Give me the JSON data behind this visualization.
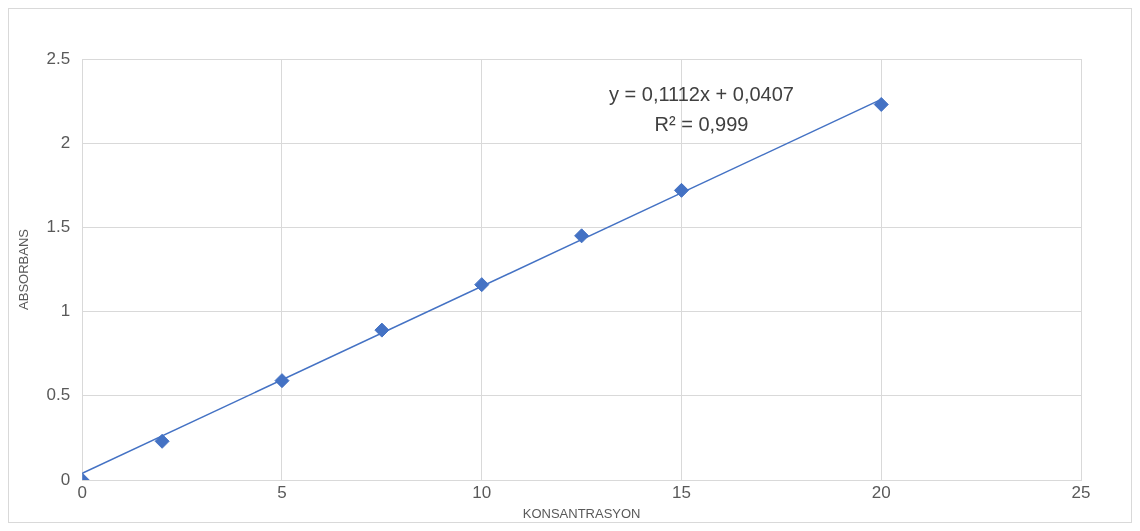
{
  "chart_data": {
    "type": "scatter",
    "xlabel": "KONSANTRASYON",
    "ylabel": "ABSORBANS",
    "x": [
      0,
      2,
      5,
      7.5,
      10,
      12.5,
      15,
      20
    ],
    "series": [
      {
        "type": "scatter",
        "color": "#4472c4",
        "values": [
          0.0,
          0.23,
          0.59,
          0.89,
          1.16,
          1.45,
          1.72,
          2.23
        ],
        "marker": "diamond"
      },
      {
        "type": "line",
        "color": "#4472c4",
        "x": [
          0,
          20
        ],
        "values": [
          0.04,
          2.26
        ],
        "marker": "none",
        "line_style": "solid"
      }
    ],
    "xlim": [
      0,
      25
    ],
    "xticks": [
      0,
      5,
      10,
      15,
      20,
      25
    ],
    "ylim": [
      0,
      2.5
    ],
    "yticks": [
      0,
      0.5,
      1,
      1.5,
      2,
      2.5
    ],
    "grid": true,
    "legend": false,
    "annotations": [
      "y = 0,1112x + 0,0407",
      "R² = 0,999"
    ]
  }
}
